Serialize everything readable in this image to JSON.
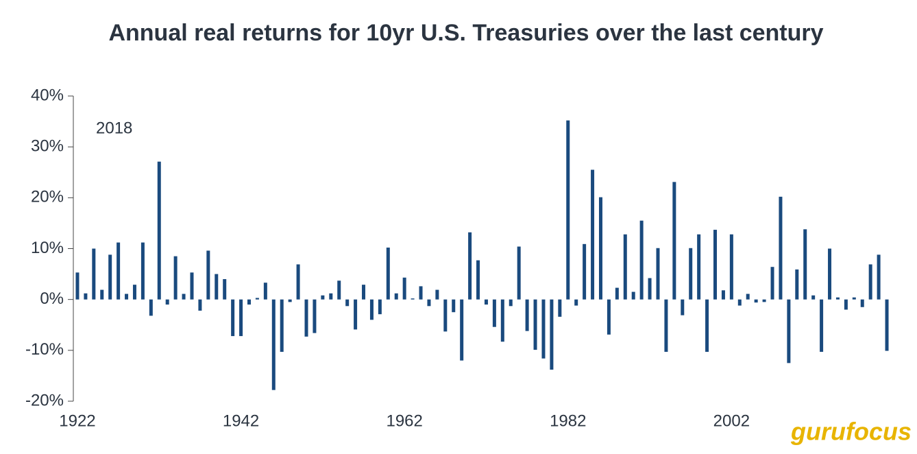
{
  "chart_data": {
    "type": "bar",
    "title": "Annual real returns for 10yr U.S. Treasuries over the last century",
    "annotation": "2018",
    "logo": "gurufocus",
    "color": "#1a4a7e",
    "categories": [
      "1922",
      null,
      null,
      null,
      null,
      null,
      null,
      null,
      null,
      null,
      null,
      null,
      null,
      null,
      null,
      null,
      null,
      null,
      null,
      null,
      "1942",
      null,
      null,
      null,
      null,
      null,
      null,
      null,
      null,
      null,
      null,
      null,
      null,
      null,
      null,
      null,
      null,
      null,
      null,
      null,
      "1962",
      null,
      null,
      null,
      null,
      null,
      null,
      null,
      null,
      null,
      null,
      null,
      null,
      null,
      null,
      null,
      null,
      null,
      null,
      null,
      "1982",
      null,
      null,
      null,
      null,
      null,
      null,
      null,
      null,
      null,
      null,
      null,
      null,
      null,
      null,
      null,
      null,
      null,
      null,
      null,
      "2002",
      null,
      null,
      null,
      null,
      null,
      null,
      null,
      null,
      null,
      null,
      null,
      null,
      null,
      null,
      null,
      null,
      null,
      null,
      null
    ],
    "values": [
      5.3,
      1.2,
      10.0,
      1.9,
      8.8,
      11.2,
      1.1,
      2.9,
      11.2,
      -3.2,
      27.1,
      -1.0,
      8.5,
      1.1,
      5.3,
      -2.2,
      9.6,
      5.0,
      4.0,
      -7.2,
      -7.2,
      -1.0,
      0.3,
      3.3,
      -17.8,
      -10.3,
      -0.5,
      6.9,
      -7.3,
      -6.6,
      0.8,
      1.2,
      3.7,
      -1.3,
      -5.9,
      2.9,
      -4.0,
      -2.9,
      10.2,
      1.2,
      4.3,
      0.2,
      2.6,
      -1.3,
      1.9,
      -6.3,
      -2.5,
      -12.0,
      13.2,
      7.7,
      -1.0,
      -5.4,
      -8.3,
      -1.3,
      10.4,
      -6.2,
      -9.9,
      -11.6,
      -13.8,
      -3.4,
      35.2,
      -1.2,
      10.9,
      25.5,
      20.1,
      -6.9,
      2.3,
      12.8,
      1.5,
      15.5,
      4.2,
      10.1,
      -10.3,
      23.1,
      -3.1,
      10.1,
      12.8,
      -10.3,
      13.7,
      1.8,
      12.8,
      -1.2,
      1.1,
      -0.6,
      -0.5,
      6.4,
      20.2,
      -12.5,
      5.9,
      13.8,
      0.8,
      -10.3,
      10.0,
      0.4,
      -2.0,
      0.4,
      -1.5,
      6.9,
      8.8,
      -10.1
    ],
    "ylim": [
      -20,
      40
    ],
    "yticks": [
      {
        "value": -20,
        "label": "-20%"
      },
      {
        "value": -10,
        "label": "-10%"
      },
      {
        "value": 0,
        "label": "0%"
      },
      {
        "value": 10,
        "label": "10%"
      },
      {
        "value": 20,
        "label": "20%"
      },
      {
        "value": 30,
        "label": "30%"
      },
      {
        "value": 40,
        "label": "40%"
      }
    ],
    "grid": false
  }
}
